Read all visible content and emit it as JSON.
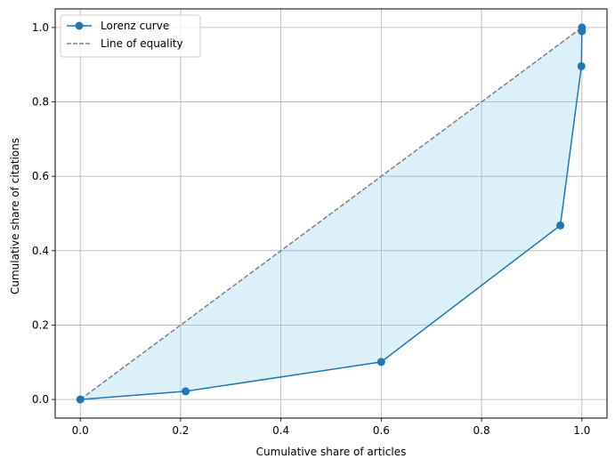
{
  "chart_data": {
    "type": "line",
    "title": "",
    "xlabel": "Cumulative share of articles",
    "ylabel": "Cumulative share of citations",
    "xlim": [
      -0.05,
      1.05
    ],
    "ylim": [
      -0.05,
      1.05
    ],
    "xticks": [
      0.0,
      0.2,
      0.4,
      0.6,
      0.8,
      1.0
    ],
    "xtick_labels": [
      "0.0",
      "0.2",
      "0.4",
      "0.6",
      "0.8",
      "1.0"
    ],
    "yticks": [
      0.0,
      0.2,
      0.4,
      0.6,
      0.8,
      1.0
    ],
    "ytick_labels": [
      "0.0",
      "0.2",
      "0.4",
      "0.6",
      "0.8",
      "1.0"
    ],
    "grid": true,
    "legend_position": "top-left",
    "series": [
      {
        "name": "Lorenz curve",
        "style": "solid-with-markers",
        "color": "#1f77b4",
        "x": [
          0.0,
          0.21,
          0.6,
          0.957,
          0.999,
          1.0,
          1.0
        ],
        "y": [
          0.0,
          0.022,
          0.101,
          0.468,
          0.896,
          0.99,
          1.0
        ]
      },
      {
        "name": "Line of equality",
        "style": "dashed",
        "color": "#808080",
        "x": [
          0.0,
          1.0
        ],
        "y": [
          0.0,
          1.0
        ]
      }
    ],
    "fill_between": {
      "color": "#87ceeb",
      "opacity": 0.3
    }
  }
}
